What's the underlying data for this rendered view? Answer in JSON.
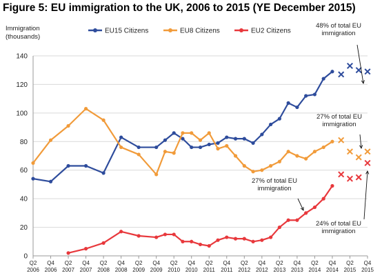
{
  "title": "Figure 5: EU immigration to the UK, 2006 to 2015 (YE December 2015)",
  "chart_data": {
    "type": "line",
    "ylabel_lines": [
      "Immigration",
      "(thousands)"
    ],
    "ylim": [
      0,
      140
    ],
    "yticks": [
      0,
      20,
      40,
      60,
      80,
      100,
      120,
      140
    ],
    "xticks": [
      {
        "q": "Q2",
        "y": "2006"
      },
      {
        "q": "Q4",
        "y": "2006"
      },
      {
        "q": "Q2",
        "y": "2007"
      },
      {
        "q": "Q4",
        "y": "2007"
      },
      {
        "q": "Q2",
        "y": "2008"
      },
      {
        "q": "Q4",
        "y": "2008"
      },
      {
        "q": "Q2",
        "y": "2009"
      },
      {
        "q": "Q4",
        "y": "2009"
      },
      {
        "q": "Q2",
        "y": "2010"
      },
      {
        "q": "Q4",
        "y": "2010"
      },
      {
        "q": "Q2",
        "y": "2011"
      },
      {
        "q": "Q4",
        "y": "2011"
      },
      {
        "q": "Q2",
        "y": "2012"
      },
      {
        "q": "Q4",
        "y": "2012"
      },
      {
        "q": "Q2",
        "y": "2013"
      },
      {
        "q": "Q4",
        "y": "2013"
      },
      {
        "q": "Q2",
        "y": "2014"
      },
      {
        "q": "Q4",
        "y": "2014"
      },
      {
        "q": "Q2",
        "y": "2015"
      },
      {
        "q": "Q4",
        "y": "2015"
      }
    ],
    "x_quarters": [
      "Q2 2006",
      "Q3 2006",
      "Q4 2006",
      "Q1 2007",
      "Q2 2007",
      "Q3 2007",
      "Q4 2007",
      "Q1 2008",
      "Q2 2008",
      "Q3 2008",
      "Q4 2008",
      "Q1 2009",
      "Q2 2009",
      "Q3 2009",
      "Q4 2009",
      "Q1 2010",
      "Q2 2010",
      "Q3 2010",
      "Q4 2010",
      "Q1 2011",
      "Q2 2011",
      "Q3 2011",
      "Q4 2011",
      "Q1 2012",
      "Q2 2012",
      "Q3 2012",
      "Q4 2012",
      "Q1 2013",
      "Q2 2013",
      "Q3 2013",
      "Q4 2013",
      "Q1 2014",
      "Q2 2014",
      "Q3 2014",
      "Q4 2014",
      "Q1 2015",
      "Q2 2015",
      "Q3 2015",
      "Q4 2015"
    ],
    "legend_position": "top",
    "series": [
      {
        "name": "EU15 Citizens",
        "color": "#2e4c9c",
        "values": [
          54,
          null,
          52,
          null,
          63,
          null,
          63,
          null,
          58,
          null,
          83,
          null,
          76,
          null,
          76,
          81,
          86,
          82,
          76,
          76,
          78,
          79,
          83,
          82,
          82,
          79,
          85,
          92,
          96,
          107,
          104,
          112,
          113,
          124,
          129,
          null,
          null,
          null,
          null
        ],
        "provisional": [
          null,
          null,
          null,
          null,
          null,
          null,
          null,
          null,
          null,
          null,
          null,
          null,
          null,
          null,
          null,
          null,
          null,
          null,
          null,
          null,
          null,
          null,
          null,
          null,
          null,
          null,
          null,
          null,
          null,
          null,
          null,
          null,
          null,
          null,
          null,
          127,
          133,
          130,
          129
        ]
      },
      {
        "name": "EU8 Citizens",
        "color": "#f19b3a",
        "values": [
          65,
          null,
          81,
          null,
          91,
          null,
          103,
          null,
          95,
          null,
          76,
          null,
          71,
          null,
          57,
          73,
          72,
          86,
          86,
          81,
          86,
          75,
          77,
          70,
          63,
          59,
          60,
          63,
          66,
          73,
          70,
          68,
          73,
          76,
          80,
          null,
          null,
          null,
          null
        ],
        "provisional": [
          null,
          null,
          null,
          null,
          null,
          null,
          null,
          null,
          null,
          null,
          null,
          null,
          null,
          null,
          null,
          null,
          null,
          null,
          null,
          null,
          null,
          null,
          null,
          null,
          null,
          null,
          null,
          null,
          null,
          null,
          null,
          null,
          null,
          null,
          null,
          81,
          73,
          69,
          73
        ]
      },
      {
        "name": "EU2 Citizens",
        "color": "#e8383c",
        "values": [
          null,
          null,
          null,
          null,
          2,
          null,
          5,
          null,
          9,
          null,
          17,
          null,
          14,
          null,
          13,
          15,
          15,
          10,
          10,
          8,
          7,
          11,
          13,
          12,
          12,
          10,
          11,
          13,
          20,
          25,
          25,
          30,
          34,
          40,
          49,
          null,
          null,
          null,
          null
        ],
        "provisional": [
          null,
          null,
          null,
          null,
          null,
          null,
          null,
          null,
          null,
          null,
          null,
          null,
          null,
          null,
          null,
          null,
          null,
          null,
          null,
          null,
          null,
          null,
          null,
          null,
          null,
          null,
          null,
          null,
          null,
          null,
          null,
          null,
          null,
          null,
          null,
          57,
          54,
          55,
          65
        ]
      }
    ],
    "annotations": [
      {
        "lines": [
          "48% of total EU",
          "immigration"
        ]
      },
      {
        "lines": [
          "27% of total EU",
          "immigration"
        ]
      },
      {
        "lines": [
          "27% of total EU",
          "immigration"
        ]
      },
      {
        "lines": [
          "24% of total EU",
          "immigration"
        ]
      }
    ]
  }
}
